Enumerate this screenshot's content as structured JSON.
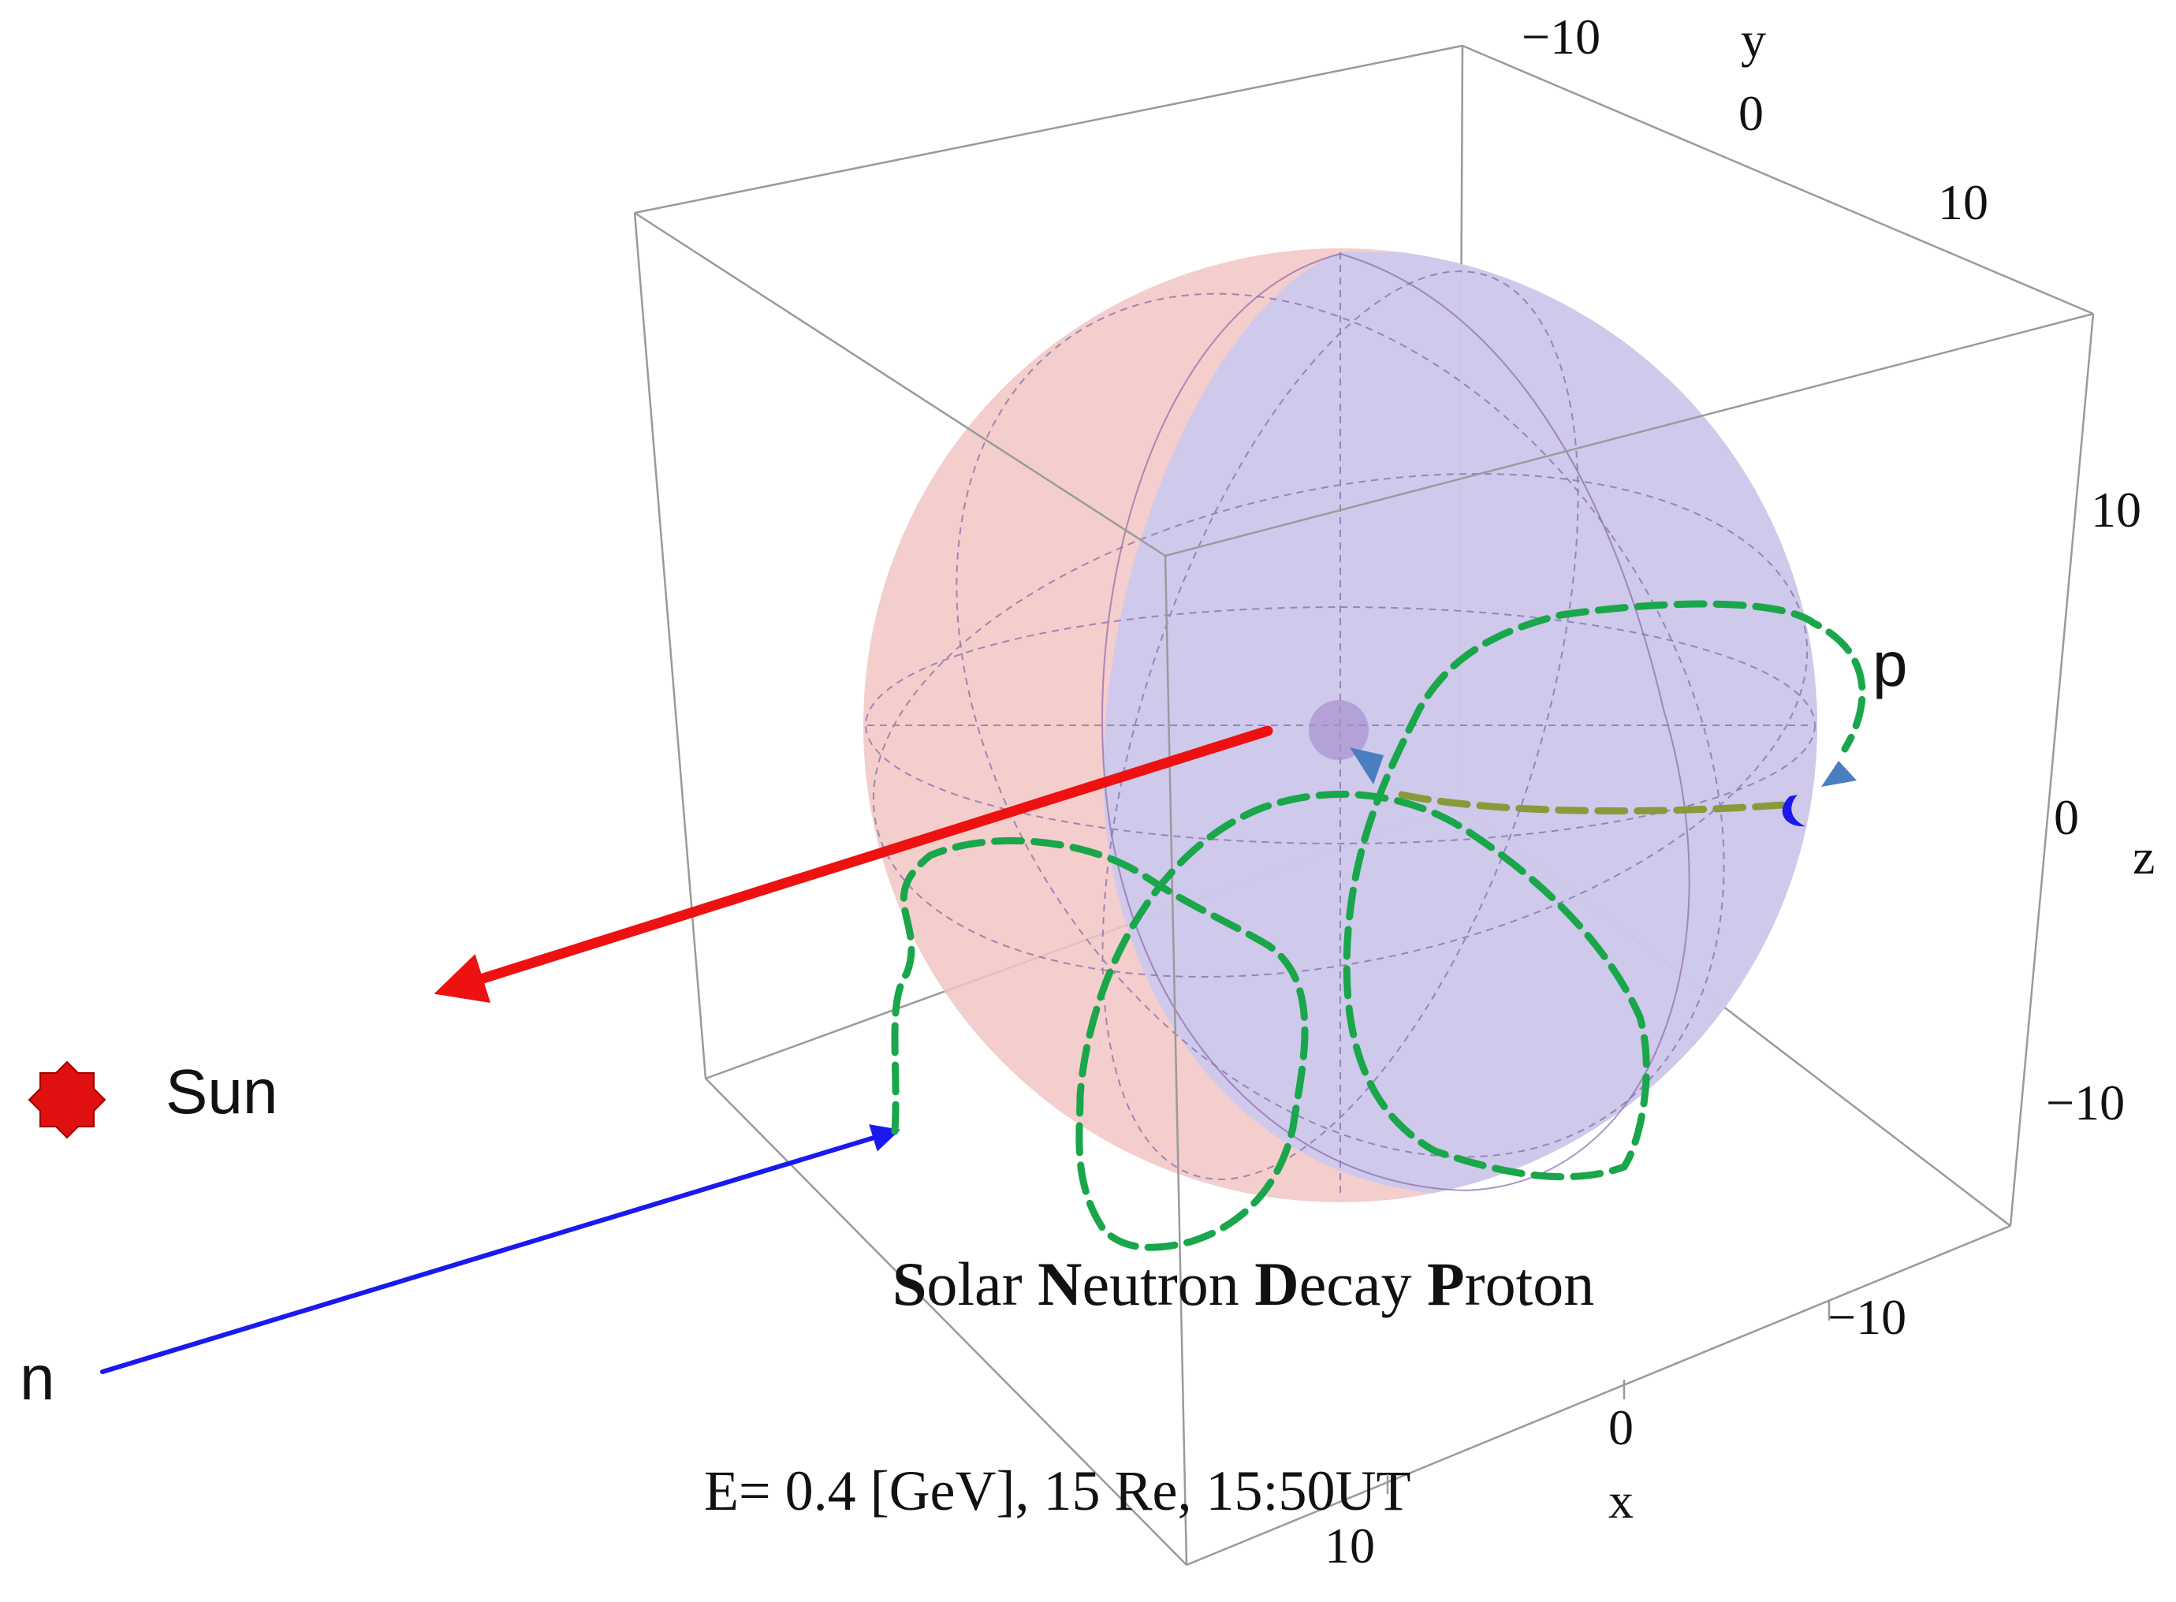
{
  "axes": {
    "y_label": "y",
    "z_label": "z",
    "x_label": "x",
    "y_ticks": [
      "−10",
      "0",
      "10"
    ],
    "z_ticks": [
      "10",
      "0",
      "−10"
    ],
    "x_ticks": [
      "−10",
      "0",
      "10"
    ]
  },
  "labels": {
    "sun": "Sun",
    "neutron": "n",
    "proton": "p",
    "title_parts": [
      {
        "bold": "S",
        "rest": "olar "
      },
      {
        "bold": "N",
        "rest": "eutron "
      },
      {
        "bold": "D",
        "rest": "ecay "
      },
      {
        "bold": "P",
        "rest": "roton"
      }
    ],
    "caption": "E= 0.4 [GeV], 15 Re, 15:50UT"
  },
  "colors": {
    "sun_arrow": "#ee1111",
    "neutron_arrow": "#1a1aee",
    "trajectory": "#1aa64a",
    "trajectory_end": "#8a9a3a",
    "sphere_day": "#f2c4c4",
    "sphere_night": "#c8c8f0",
    "box": "#9a9a9a",
    "sun_icon": "#e01010",
    "arrowhead_small": "#4a7ec0"
  }
}
